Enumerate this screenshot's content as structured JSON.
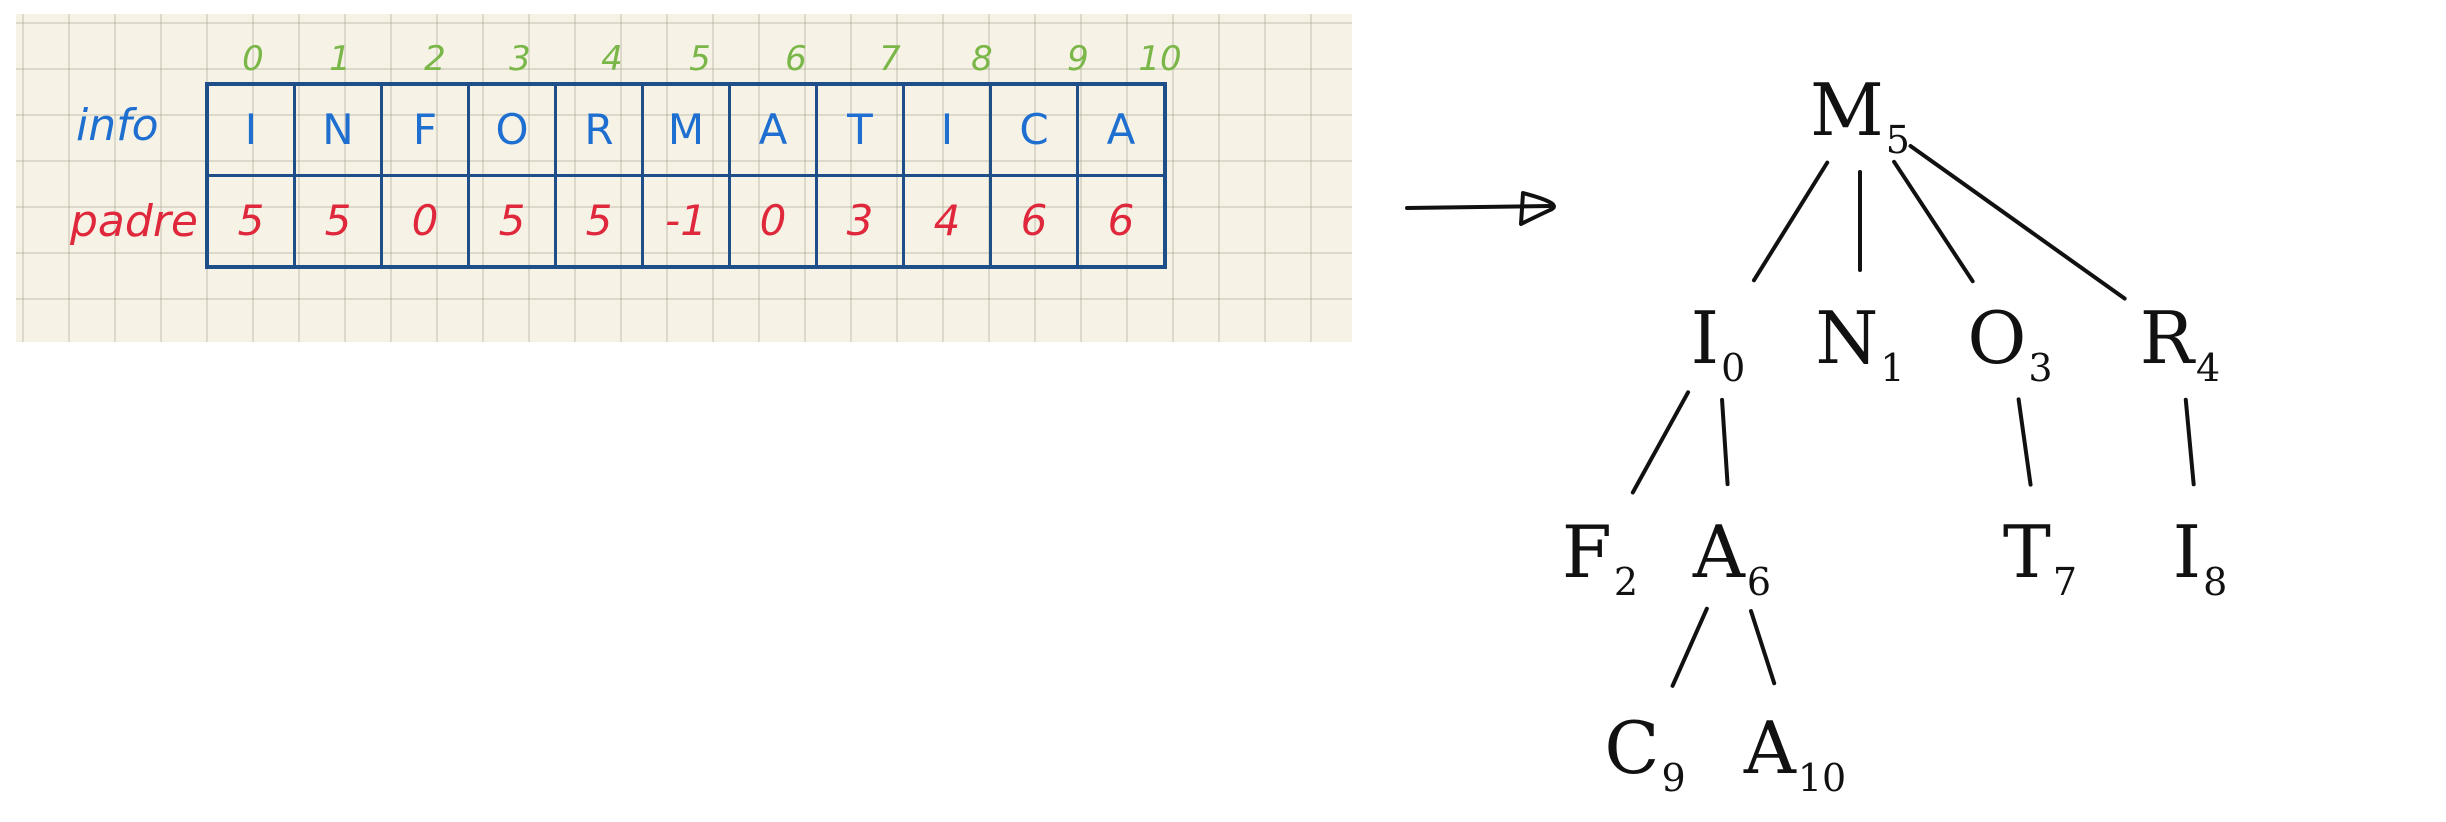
{
  "colors": {
    "index": "#7ab648",
    "info": "#1f6fd1",
    "padre": "#e0283c",
    "border": "#1f4f88",
    "ink": "#111111"
  },
  "table": {
    "row_labels": {
      "info": "info",
      "padre": "padre"
    },
    "indices": [
      "0",
      "1",
      "2",
      "3",
      "4",
      "5",
      "6",
      "7",
      "8",
      "9",
      "10"
    ],
    "info": [
      "I",
      "N",
      "F",
      "O",
      "R",
      "M",
      "A",
      "T",
      "I",
      "C",
      "A"
    ],
    "padre": [
      "5",
      "5",
      "0",
      "5",
      "5",
      "-1",
      "0",
      "3",
      "4",
      "6",
      "6"
    ]
  },
  "tree": {
    "nodes": [
      {
        "id": "n5",
        "letter": "M",
        "index": "5"
      },
      {
        "id": "n0",
        "letter": "I",
        "index": "0"
      },
      {
        "id": "n1",
        "letter": "N",
        "index": "1"
      },
      {
        "id": "n3",
        "letter": "O",
        "index": "3"
      },
      {
        "id": "n4",
        "letter": "R",
        "index": "4"
      },
      {
        "id": "n2",
        "letter": "F",
        "index": "2"
      },
      {
        "id": "n6",
        "letter": "A",
        "index": "6"
      },
      {
        "id": "n7",
        "letter": "T",
        "index": "7"
      },
      {
        "id": "n8",
        "letter": "I",
        "index": "8"
      },
      {
        "id": "n9",
        "letter": "C",
        "index": "9"
      },
      {
        "id": "n10",
        "letter": "A",
        "index": "10"
      }
    ]
  }
}
